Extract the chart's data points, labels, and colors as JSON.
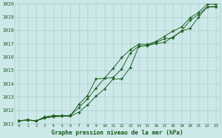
{
  "x": [
    0,
    1,
    2,
    3,
    4,
    5,
    6,
    7,
    8,
    9,
    10,
    11,
    12,
    13,
    14,
    15,
    16,
    17,
    18,
    19,
    20,
    21,
    22,
    23
  ],
  "line1": [
    1011.2,
    1011.3,
    1011.2,
    1011.4,
    1011.5,
    1011.55,
    1011.6,
    1012.2,
    1012.85,
    1013.65,
    1014.4,
    1014.45,
    1015.1,
    1016.3,
    1016.8,
    1016.85,
    1017.0,
    1017.1,
    1017.5,
    1017.95,
    1018.75,
    1019.2,
    1019.75,
    1019.75
  ],
  "line2": [
    1011.2,
    1011.25,
    1011.2,
    1011.45,
    1011.55,
    1011.55,
    1011.55,
    1011.85,
    1012.4,
    1013.05,
    1013.6,
    1014.35,
    1014.35,
    1015.2,
    1016.8,
    1016.85,
    1017.1,
    1017.35,
    1017.45,
    1017.95,
    1018.15,
    1019.0,
    1019.75,
    1019.8
  ],
  "line3": [
    1011.2,
    1011.25,
    1011.2,
    1011.5,
    1011.6,
    1011.6,
    1011.6,
    1012.45,
    1013.1,
    1014.35,
    1014.4,
    1015.15,
    1015.95,
    1016.55,
    1016.95,
    1016.95,
    1017.15,
    1017.55,
    1017.95,
    1018.25,
    1018.95,
    1019.35,
    1019.95,
    1019.95
  ],
  "bg_color": "#cce8e8",
  "grid_color": "#aacece",
  "line_color": "#1a5c1a",
  "marker": "+",
  "title": "Graphe pression niveau de la mer (hPa)",
  "ylim_min": 1011.0,
  "ylim_max": 1020.0,
  "xlim_min": -0.5,
  "xlim_max": 23.5,
  "yticks": [
    1011,
    1012,
    1013,
    1014,
    1015,
    1016,
    1017,
    1018,
    1019,
    1020
  ],
  "xticks": [
    0,
    1,
    2,
    3,
    4,
    5,
    6,
    7,
    8,
    9,
    10,
    11,
    12,
    13,
    14,
    15,
    16,
    17,
    18,
    19,
    20,
    21,
    22,
    23
  ]
}
